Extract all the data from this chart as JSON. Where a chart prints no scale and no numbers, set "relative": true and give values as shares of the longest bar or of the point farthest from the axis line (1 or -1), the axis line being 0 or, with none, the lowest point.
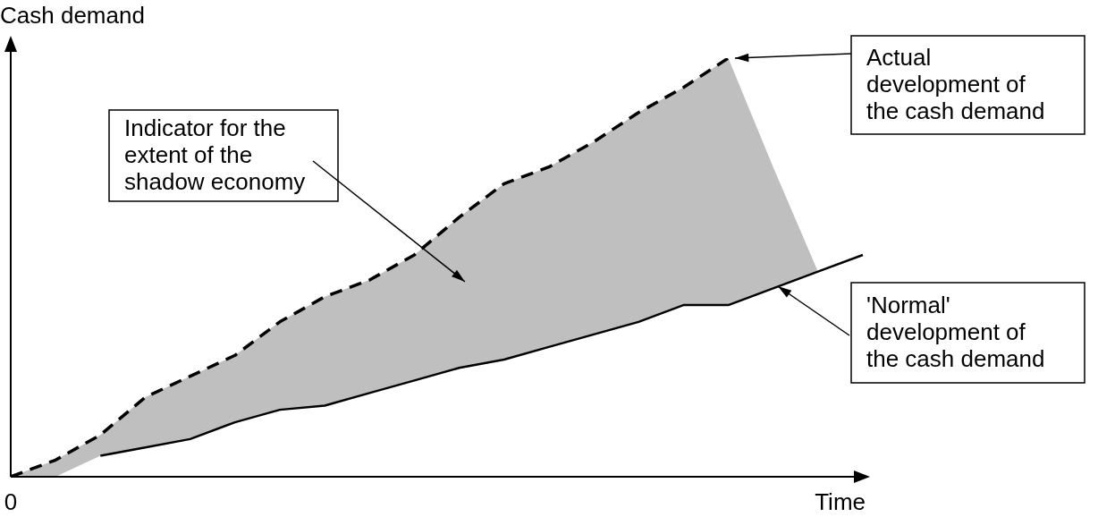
{
  "chart_data": {
    "type": "line",
    "relative": true,
    "xlabel": "Time",
    "ylabel": "Cash demand",
    "categories": [
      null,
      null,
      null,
      null,
      null,
      null,
      null,
      null,
      null,
      null,
      null,
      null,
      null,
      null,
      null,
      null,
      null,
      null,
      null,
      null
    ],
    "series": [
      {
        "color": "#000000",
        "line_style": "dashed",
        "values": [
          0,
          0.04,
          0.1,
          0.19,
          0.24,
          0.29,
          0.37,
          0.43,
          0.47,
          0.53,
          0.62,
          0.7,
          0.74,
          0.8,
          0.87,
          0.93,
          1.0,
          null,
          null,
          null
        ],
        "lower": [
          0,
          0,
          0.05,
          0.07,
          0.09,
          0.13,
          0.16,
          0.17,
          0.2,
          0.23,
          0.26,
          0.28,
          0.31,
          0.34,
          0.37,
          0.41,
          0.41,
          0.45,
          0.49,
          null
        ],
        "upper": [
          0,
          0.04,
          0.1,
          0.19,
          0.24,
          0.29,
          0.37,
          0.43,
          0.47,
          0.53,
          0.62,
          0.7,
          0.74,
          0.8,
          0.87,
          0.93,
          1.0,
          0.74,
          0.49,
          null
        ]
      },
      {
        "color": "#000000",
        "line_style": "solid",
        "values": [
          null,
          null,
          0.05,
          0.07,
          0.09,
          0.13,
          0.16,
          0.17,
          0.2,
          0.23,
          0.26,
          0.28,
          0.31,
          0.34,
          0.37,
          0.41,
          0.41,
          0.45,
          0.49,
          0.53
        ]
      }
    ],
    "annotations": [
      "Indicator for the extent of the shadow economy",
      "Actual development of the cash demand",
      "'Normal' development of the cash demand",
      "0"
    ],
    "legend": false,
    "marker": "none"
  }
}
